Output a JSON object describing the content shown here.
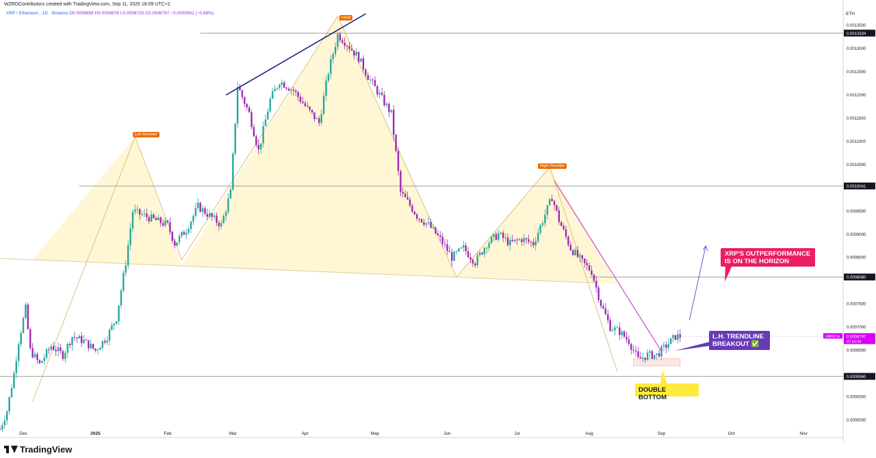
{
  "header": {
    "credit": "WZRDContributors created with TradingView.com, Sep 11, 2025 18:09 UTC+2",
    "symbol_line": "XRP / Ethereum · 1D · Binance",
    "ohlc": "O0.0006858 H0.0006876 L0.0006720 C0.0006797 −0.0000061 (−0.89%)",
    "currency": "ETH"
  },
  "footer": {
    "brand": "TradingView"
  },
  "annotations": {
    "outperformance": "XRP'S OUTPERFORMANCE IS ON THE HORIZON",
    "breakout_line1": "L.H. TRENDLINE",
    "breakout_line2": "BREAKOUT ✅",
    "double_bottom": "DOUBLE BOTTOM"
  },
  "pattern_labels": {
    "left_shoulder": "Left Shoulder",
    "head": "Head",
    "right_shoulder": "Right Shoulder"
  },
  "colors": {
    "up_candle": "#26a69a",
    "down_candle": "#9c27b0",
    "pattern_fill": "#fff6d5",
    "trendline_blue": "#1a237e",
    "trendline_magenta": "#c026d3",
    "callout_red": "#e91e63",
    "callout_purple": "#673ab7",
    "callout_yellow": "#ffeb3b"
  },
  "chart_data": {
    "type": "candlestick",
    "title": "",
    "xlabel": "",
    "ylabel": "",
    "ylim": [
      0.00048,
      0.00139
    ],
    "y_ticks": [
      "0.0013500",
      "0.0013000",
      "0.0012500",
      "0.0012000",
      "0.0011500",
      "0.0011000",
      "0.0010500",
      "0.0009500",
      "0.0009000",
      "0.0008500",
      "0.0007500",
      "0.0007000",
      "0.0006500",
      "0.0005500",
      "0.0005000"
    ],
    "y_tick_values": [
      0.00135,
      0.0013,
      0.00125,
      0.0012,
      0.00115,
      0.0011,
      0.00105,
      0.00095,
      0.0009,
      0.00085,
      0.00075,
      0.0007,
      0.00065,
      0.00055,
      0.0005
    ],
    "x_ticks": [
      "Dec",
      "2025",
      "Feb",
      "Mar",
      "Apr",
      "May",
      "Jun",
      "Jul",
      "Aug",
      "Sep",
      "Oct",
      "Nov"
    ],
    "x_tick_dates": [
      "2024-12-01",
      "2025-01-01",
      "2025-02-01",
      "2025-03-01",
      "2025-04-01",
      "2025-05-01",
      "2025-06-01",
      "2025-07-01",
      "2025-08-01",
      "2025-09-01",
      "2025-10-01",
      "2025-11-01"
    ],
    "x_range": [
      "2024-11-21",
      "2025-11-18"
    ],
    "horizontal_levels": [
      {
        "value": 0.0013334,
        "label": "0.0013334",
        "from": "2025-02-15"
      },
      {
        "value": 0.0010041,
        "label": "0.0010041",
        "from": "2024-12-25"
      },
      {
        "value": 0.000808,
        "label": "0.0008080",
        "from": "2025-08-01"
      },
      {
        "value": 0.000594,
        "label": "0.0005940",
        "from": "2024-11-21"
      }
    ],
    "last_price": {
      "label": "XRPETH",
      "value": 0.0006797,
      "display": "0.0006797",
      "countdown": "07:50:39"
    },
    "head_shoulders": [
      {
        "date": "2024-12-05",
        "value": 0.00054
      },
      {
        "date": "2025-01-18",
        "value": 0.00111
      },
      {
        "date": "2025-02-07",
        "value": 0.000845
      },
      {
        "date": "2025-04-15",
        "value": 0.00137
      },
      {
        "date": "2025-06-05",
        "value": 0.000808
      },
      {
        "date": "2025-07-15",
        "value": 0.001045
      },
      {
        "date": "2025-08-13",
        "value": 0.000605
      }
    ],
    "neckline": [
      {
        "date": "2024-11-21",
        "value": 0.000848
      },
      {
        "date": "2025-08-05",
        "value": 0.000795
      }
    ],
    "blue_trendline": [
      {
        "date": "2025-02-26",
        "value": 0.0012
      },
      {
        "date": "2025-04-27",
        "value": 0.001375
      }
    ],
    "magenta_trendline": [
      {
        "date": "2025-07-17",
        "value": 0.001015
      },
      {
        "date": "2025-09-01",
        "value": 0.000648
      }
    ],
    "projection_arrow": [
      {
        "date": "2025-09-13",
        "value": 0.000715
      },
      {
        "date": "2025-09-20",
        "value": 0.000875
      }
    ],
    "double_bottom_zone": {
      "from": "2025-08-20",
      "to": "2025-09-09",
      "low": 0.000617,
      "high": 0.000632
    },
    "close_path": [
      [
        "2024-11-21",
        0.00048
      ],
      [
        "2024-11-24",
        0.00052
      ],
      [
        "2024-11-27",
        0.0006
      ],
      [
        "2024-11-29",
        0.00067
      ],
      [
        "2024-12-02",
        0.00074
      ],
      [
        "2024-12-04",
        0.00065
      ],
      [
        "2024-12-08",
        0.00062
      ],
      [
        "2024-12-13",
        0.00066
      ],
      [
        "2024-12-18",
        0.00064
      ],
      [
        "2024-12-22",
        0.00068
      ],
      [
        "2024-12-27",
        0.00067
      ],
      [
        "2025-01-01",
        0.00065
      ],
      [
        "2025-01-06",
        0.00068
      ],
      [
        "2025-01-10",
        0.00072
      ],
      [
        "2025-01-14",
        0.00084
      ],
      [
        "2025-01-17",
        0.00095
      ],
      [
        "2025-01-22",
        0.00094
      ],
      [
        "2025-01-27",
        0.00093
      ],
      [
        "2025-02-01",
        0.00092
      ],
      [
        "2025-02-04",
        0.00088
      ],
      [
        "2025-02-09",
        0.00091
      ],
      [
        "2025-02-14",
        0.00096
      ],
      [
        "2025-02-19",
        0.00094
      ],
      [
        "2025-02-24",
        0.00092
      ],
      [
        "2025-02-28",
        0.00099
      ],
      [
        "2025-03-03",
        0.00122
      ],
      [
        "2025-03-08",
        0.00116
      ],
      [
        "2025-03-12",
        0.00108
      ],
      [
        "2025-03-17",
        0.00119
      ],
      [
        "2025-03-21",
        0.00123
      ],
      [
        "2025-03-27",
        0.00121
      ],
      [
        "2025-04-02",
        0.00117
      ],
      [
        "2025-04-07",
        0.00114
      ],
      [
        "2025-04-11",
        0.00125
      ],
      [
        "2025-04-15",
        0.00133
      ],
      [
        "2025-04-19",
        0.00131
      ],
      [
        "2025-04-24",
        0.00128
      ],
      [
        "2025-04-28",
        0.00124
      ],
      [
        "2025-05-03",
        0.0012
      ],
      [
        "2025-05-08",
        0.00116
      ],
      [
        "2025-05-12",
        0.00099
      ],
      [
        "2025-05-15",
        0.00097
      ],
      [
        "2025-05-19",
        0.00094
      ],
      [
        "2025-05-24",
        0.00092
      ],
      [
        "2025-05-29",
        0.00089
      ],
      [
        "2025-06-03",
        0.00085
      ],
      [
        "2025-06-08",
        0.00087
      ],
      [
        "2025-06-13",
        0.00084
      ],
      [
        "2025-06-18",
        0.00088
      ],
      [
        "2025-06-23",
        0.0009
      ],
      [
        "2025-06-28",
        0.00088
      ],
      [
        "2025-07-03",
        0.00089
      ],
      [
        "2025-07-08",
        0.00088
      ],
      [
        "2025-07-12",
        0.00093
      ],
      [
        "2025-07-16",
        0.00098
      ],
      [
        "2025-07-19",
        0.00093
      ],
      [
        "2025-07-24",
        0.00087
      ],
      [
        "2025-07-29",
        0.00084
      ],
      [
        "2025-08-02",
        0.00082
      ],
      [
        "2025-08-06",
        0.00075
      ],
      [
        "2025-08-10",
        0.0007
      ],
      [
        "2025-08-14",
        0.00069
      ],
      [
        "2025-08-18",
        0.00067
      ],
      [
        "2025-08-22",
        0.00063
      ],
      [
        "2025-08-26",
        0.00064
      ],
      [
        "2025-08-30",
        0.00064
      ],
      [
        "2025-09-03",
        0.00066
      ],
      [
        "2025-09-07",
        0.00068
      ],
      [
        "2025-09-10",
        0.00068
      ]
    ]
  }
}
